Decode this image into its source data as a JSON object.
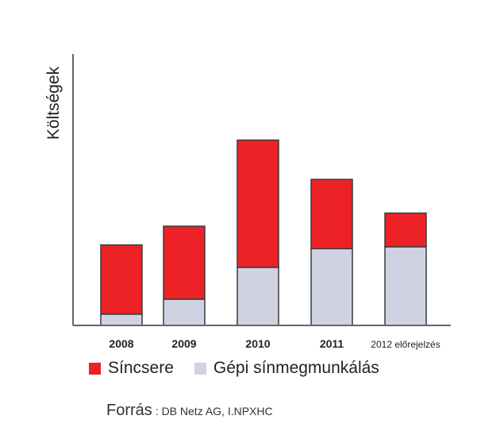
{
  "chart_data": {
    "type": "bar",
    "stacked": true,
    "categories": [
      "2008",
      "2009",
      "2010",
      "2011",
      "2012 előrejelzés"
    ],
    "series": [
      {
        "name": "Gépi sínmegmunkálás",
        "values": [
          6,
          14,
          31,
          41,
          42
        ],
        "color": "#cfd2e3"
      },
      {
        "name": "Síncsere",
        "values": [
          37,
          39,
          68,
          37,
          18
        ],
        "color": "#ec2227"
      }
    ],
    "ylabel": "Költségek",
    "xlabel": "",
    "ylim": [
      0,
      145
    ],
    "grid": false,
    "legend_position": "bottom"
  },
  "source": {
    "label": "Forrás",
    "text": ": DB Netz AG, I.NPXHC"
  }
}
